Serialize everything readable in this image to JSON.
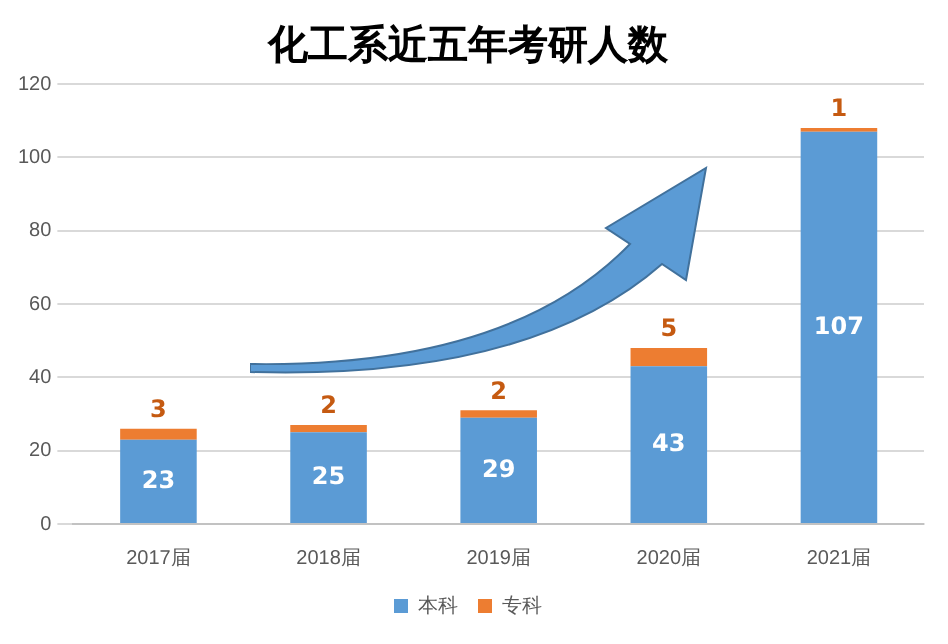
{
  "chart_data": {
    "type": "bar",
    "title": "化工系近五年考研人数",
    "categories": [
      "2017届",
      "2018届",
      "2019届",
      "2020届",
      "2021届"
    ],
    "stacked": true,
    "series": [
      {
        "name": "本科",
        "color": "#5b9bd5",
        "values": [
          23,
          25,
          29,
          43,
          107
        ]
      },
      {
        "name": "专科",
        "color": "#ed7d31",
        "values": [
          3,
          2,
          2,
          5,
          1
        ]
      }
    ],
    "ylim": [
      0,
      120
    ],
    "yticks": [
      0,
      20,
      40,
      60,
      80,
      100,
      120
    ],
    "grid": "y",
    "legend": "bottom",
    "data_labels": true
  }
}
